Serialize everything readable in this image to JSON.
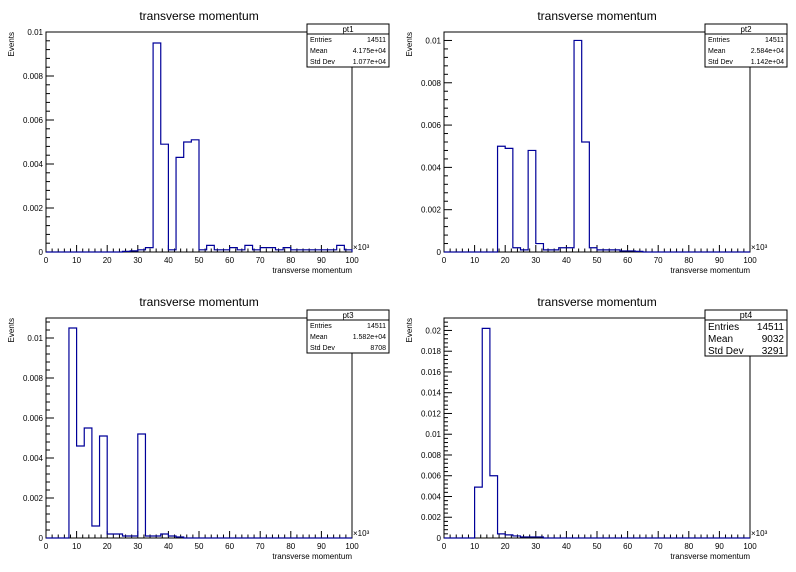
{
  "chart_data": [
    {
      "type": "bar",
      "title": "transverse momentum",
      "xlabel": "transverse momentum",
      "ylabel": "Events",
      "x_multiplier": "×10³",
      "xlim": [
        0,
        100
      ],
      "ylim": [
        0,
        0.01
      ],
      "x_ticks": [
        0,
        10,
        20,
        30,
        40,
        50,
        60,
        70,
        80,
        90,
        100
      ],
      "y_ticks": [
        0,
        0.002,
        0.004,
        0.006,
        0.008,
        0.01
      ],
      "y_tick_labels": [
        "0",
        "0.002",
        "0.004",
        "0.006",
        "0.008",
        "0.01"
      ],
      "bin_width": 2.5,
      "values": [
        0,
        0,
        0,
        0,
        0,
        0,
        0,
        0,
        0,
        0,
        3e-05,
        5e-05,
        0.0001,
        0.0002,
        0.0095,
        0.0049,
        0.0001,
        0.0043,
        0.005,
        0.0051,
        0.0001,
        0.0003,
        0.0001,
        0.0001,
        0.0002,
        0.0001,
        0.0003,
        0.0001,
        0.0002,
        0.0002,
        0.0001,
        0.0002,
        0.0001,
        0.0001,
        0.0001,
        0.0001,
        0.0001,
        0.0001,
        0.0003,
        0.0001
      ],
      "stats": {
        "name": "pt1",
        "rows": [
          {
            "label": "Entries",
            "value": "14511"
          },
          {
            "label": "Mean",
            "value": "4.175e+04"
          },
          {
            "label": "Std Dev",
            "value": "1.077e+04"
          }
        ]
      }
    },
    {
      "type": "bar",
      "title": "transverse momentum",
      "xlabel": "transverse momentum",
      "ylabel": "Events",
      "x_multiplier": "×10³",
      "xlim": [
        0,
        100
      ],
      "ylim": [
        0,
        0.0104
      ],
      "x_ticks": [
        0,
        10,
        20,
        30,
        40,
        50,
        60,
        70,
        80,
        90,
        100
      ],
      "y_ticks": [
        0,
        0.002,
        0.004,
        0.006,
        0.008,
        0.01
      ],
      "y_tick_labels": [
        "0",
        "0.002",
        "0.004",
        "0.006",
        "0.008",
        "0.01"
      ],
      "bin_width": 2.5,
      "values": [
        0,
        0,
        0,
        0,
        0,
        0,
        0,
        0.005,
        0.0049,
        0.0002,
        0.0001,
        0.0048,
        0.0004,
        0.0001,
        0.0001,
        0.0002,
        0.0002,
        0.01,
        0.0052,
        0.0002,
        0.0001,
        0.0001,
        0.0001,
        5e-05,
        5e-05,
        3e-05,
        0,
        0,
        0,
        0,
        0,
        0,
        0,
        0,
        0,
        0,
        0,
        0,
        0,
        0
      ],
      "stats": {
        "name": "pt2",
        "rows": [
          {
            "label": "Entries",
            "value": "14511"
          },
          {
            "label": "Mean",
            "value": "2.584e+04"
          },
          {
            "label": "Std Dev",
            "value": "1.142e+04"
          }
        ]
      }
    },
    {
      "type": "bar",
      "title": "transverse momentum",
      "xlabel": "transverse momentum",
      "ylabel": "Events",
      "x_multiplier": "×10³",
      "xlim": [
        0,
        100
      ],
      "ylim": [
        0,
        0.011
      ],
      "x_ticks": [
        0,
        10,
        20,
        30,
        40,
        50,
        60,
        70,
        80,
        90,
        100
      ],
      "y_ticks": [
        0,
        0.002,
        0.004,
        0.006,
        0.008,
        0.01
      ],
      "y_tick_labels": [
        "0",
        "0.002",
        "0.004",
        "0.006",
        "0.008",
        "0.01"
      ],
      "bin_width": 2.5,
      "values": [
        0,
        0,
        0,
        0.0105,
        0.0046,
        0.0055,
        0.0006,
        0.0051,
        0.0002,
        0.0002,
        0.0001,
        0.0001,
        0.0052,
        0.0001,
        0.0001,
        0.0002,
        0.0001,
        5e-05,
        0,
        0,
        0,
        0,
        0,
        0,
        0,
        0,
        0,
        0,
        0,
        0,
        0,
        0,
        0,
        0,
        0,
        0,
        0,
        0,
        0,
        0
      ],
      "stats": {
        "name": "pt3",
        "rows": [
          {
            "label": "Entries",
            "value": "14511"
          },
          {
            "label": "Mean",
            "value": "1.582e+04"
          },
          {
            "label": "Std Dev",
            "value": "8708"
          }
        ]
      }
    },
    {
      "type": "bar",
      "title": "transverse momentum",
      "xlabel": "transverse momentum",
      "ylabel": "Events",
      "x_multiplier": "×10³",
      "xlim": [
        0,
        100
      ],
      "ylim": [
        0,
        0.0212
      ],
      "x_ticks": [
        0,
        10,
        20,
        30,
        40,
        50,
        60,
        70,
        80,
        90,
        100
      ],
      "y_ticks": [
        0,
        0.002,
        0.004,
        0.006,
        0.008,
        0.01,
        0.012,
        0.014,
        0.016,
        0.018,
        0.02
      ],
      "y_tick_labels": [
        "0",
        "0.002",
        "0.004",
        "0.006",
        "0.008",
        "0.01",
        "0.012",
        "0.014",
        "0.016",
        "0.018",
        "0.02"
      ],
      "bin_width": 2.5,
      "values": [
        0,
        0,
        0,
        0,
        0.0049,
        0.0202,
        0.006,
        0.0004,
        0.0003,
        0.0002,
        0.0001,
        0.0001,
        0.0001,
        0,
        0,
        0,
        0,
        0,
        0,
        0,
        0,
        0,
        0,
        0,
        0,
        0,
        0,
        0,
        0,
        0,
        0,
        0,
        0,
        0,
        0,
        0,
        0,
        0,
        0,
        0
      ],
      "stats": {
        "name": "pt4",
        "big": true,
        "rows": [
          {
            "label": "Entries",
            "value": "14511"
          },
          {
            "label": "Mean",
            "value": "9032"
          },
          {
            "label": "Std Dev",
            "value": "3291"
          }
        ]
      }
    }
  ],
  "colors": {
    "histogram_line": "#000099",
    "axis": "#000000",
    "background": "#ffffff"
  }
}
